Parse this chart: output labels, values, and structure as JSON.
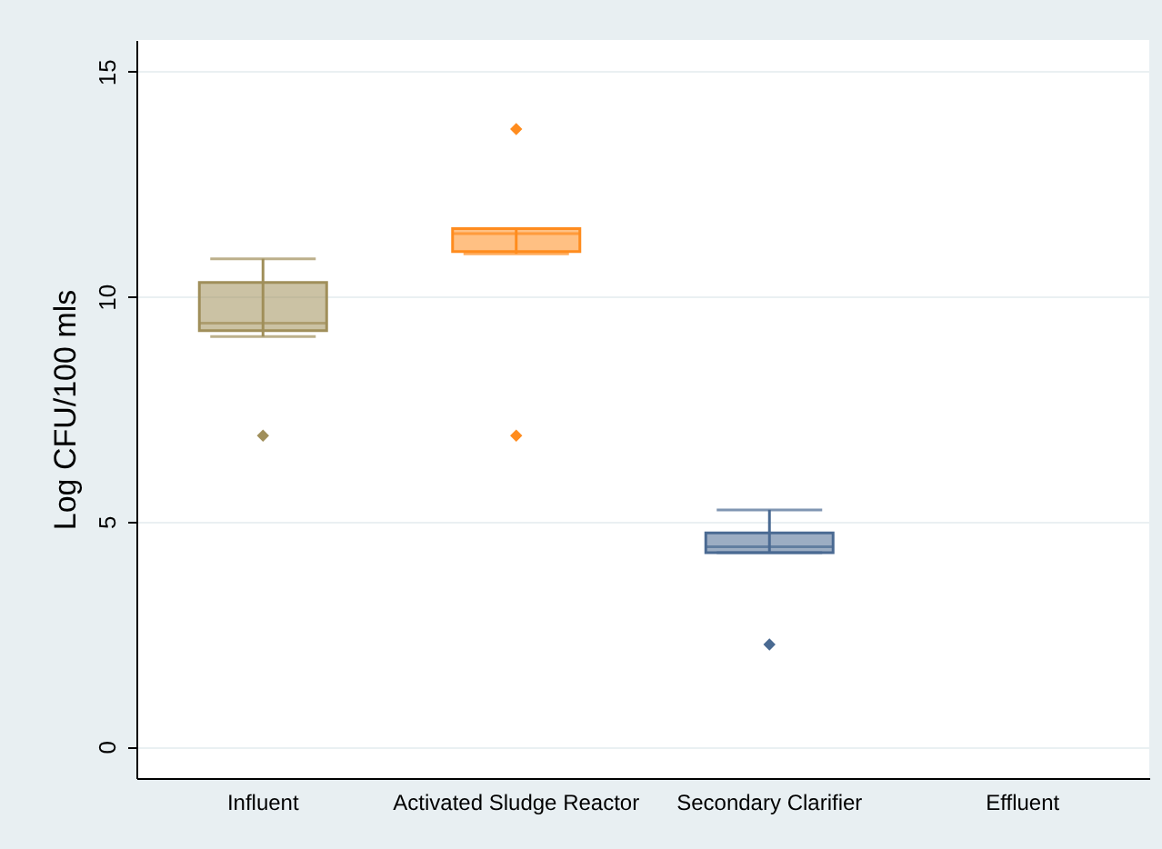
{
  "chart_data": {
    "type": "box",
    "ylabel": "Log CFU/100 mls",
    "categories": [
      "Influent",
      "Activated Sludge Reactor",
      "Secondary Clarifier",
      "Effluent"
    ],
    "colors": [
      "#a08f5a",
      "#ff8c1e",
      "#4a6a92",
      "#4a6a92"
    ],
    "boxes": [
      {
        "low": 9.11,
        "q1": 9.24,
        "median": 9.41,
        "q3": 10.31,
        "high": 10.84,
        "outliers": [
          6.91
        ]
      },
      {
        "low": 10.95,
        "q1": 11.0,
        "median": 11.4,
        "q3": 11.51,
        "high": 11.51,
        "outliers": [
          13.72,
          6.91
        ]
      },
      {
        "low": 4.31,
        "q1": 4.31,
        "median": 4.44,
        "q3": 4.75,
        "high": 5.26,
        "outliers": [
          2.27
        ]
      },
      null
    ],
    "ylim": [
      -0.7,
      15.7
    ],
    "yticks": [
      0,
      5,
      10,
      15
    ],
    "grid": "y",
    "marker": "diamond"
  }
}
